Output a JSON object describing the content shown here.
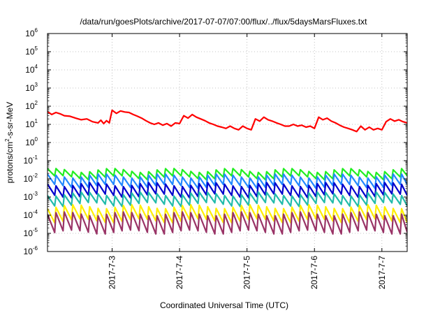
{
  "chart_data": {
    "type": "line",
    "title": "/data/run/goesPlots/archive/2017-07-07/07:00/flux/../flux/5daysMarsFluxes.txt",
    "xlabel": "Coordinated Universal Time (UTC)",
    "ylabel": "protons/cm2-s-sr-MeV",
    "ylabel_base": "protons/cm",
    "ylabel_sup": "2",
    "ylabel_rest": "-s-sr-MeV",
    "y_scale": "log",
    "ylim": [
      1e-06,
      1000000.0
    ],
    "xlim": [
      "2017-07-02 01:00",
      "2017-07-07 09:00"
    ],
    "grid": true,
    "legend": "none",
    "x_ticks": [
      {
        "value": "2017-07-03 00:00",
        "label": "2017-7-3"
      },
      {
        "value": "2017-07-04 00:00",
        "label": "2017-7-4"
      },
      {
        "value": "2017-07-05 00:00",
        "label": "2017-7-5"
      },
      {
        "value": "2017-07-06 00:00",
        "label": "2017-7-6"
      },
      {
        "value": "2017-07-07 00:00",
        "label": "2017-7-7"
      }
    ],
    "y_ticks": [
      {
        "value": 1e-06,
        "base": "10",
        "exp": "-6"
      },
      {
        "value": 1e-05,
        "base": "10",
        "exp": "-5"
      },
      {
        "value": 0.0001,
        "base": "10",
        "exp": "-4"
      },
      {
        "value": 0.001,
        "base": "10",
        "exp": "-3"
      },
      {
        "value": 0.01,
        "base": "10",
        "exp": "-2"
      },
      {
        "value": 0.1,
        "base": "10",
        "exp": "-1"
      },
      {
        "value": 1.0,
        "base": "10",
        "exp": "0"
      },
      {
        "value": 10.0,
        "base": "10",
        "exp": "1"
      },
      {
        "value": 100.0,
        "base": "10",
        "exp": "2"
      },
      {
        "value": 1000.0,
        "base": "10",
        "exp": "3"
      },
      {
        "value": 10000.0,
        "base": "10",
        "exp": "4"
      },
      {
        "value": 100000.0,
        "base": "10",
        "exp": "5"
      },
      {
        "value": 1000000.0,
        "base": "10",
        "exp": "6"
      }
    ],
    "series": [
      {
        "color": "#ff0000",
        "x": [
          "2017-07-02 01:00",
          "2017-07-02 02:30",
          "2017-07-02 04:00",
          "2017-07-02 05:30",
          "2017-07-02 07:00",
          "2017-07-02 09:00",
          "2017-07-02 11:00",
          "2017-07-02 13:00",
          "2017-07-02 15:00",
          "2017-07-02 17:00",
          "2017-07-02 19:00",
          "2017-07-02 20:00",
          "2017-07-02 21:00",
          "2017-07-02 22:00",
          "2017-07-02 23:00",
          "2017-07-03 00:00",
          "2017-07-03 01:30",
          "2017-07-03 03:00",
          "2017-07-03 04:30",
          "2017-07-03 06:00",
          "2017-07-03 07:30",
          "2017-07-03 09:00",
          "2017-07-03 10:30",
          "2017-07-03 12:00",
          "2017-07-03 13:30",
          "2017-07-03 15:00",
          "2017-07-03 16:30",
          "2017-07-03 18:00",
          "2017-07-03 19:30",
          "2017-07-03 21:00",
          "2017-07-03 22:30",
          "2017-07-04 00:00",
          "2017-07-04 01:30",
          "2017-07-04 03:00",
          "2017-07-04 04:30",
          "2017-07-04 06:00",
          "2017-07-04 07:30",
          "2017-07-04 09:00",
          "2017-07-04 10:30",
          "2017-07-04 12:00",
          "2017-07-04 13:30",
          "2017-07-04 15:00",
          "2017-07-04 16:30",
          "2017-07-04 18:00",
          "2017-07-04 19:30",
          "2017-07-04 21:00",
          "2017-07-04 22:30",
          "2017-07-05 00:00",
          "2017-07-05 01:30",
          "2017-07-05 03:00",
          "2017-07-05 04:30",
          "2017-07-05 06:00",
          "2017-07-05 07:30",
          "2017-07-05 09:00",
          "2017-07-05 10:30",
          "2017-07-05 12:00",
          "2017-07-05 13:30",
          "2017-07-05 15:00",
          "2017-07-05 16:30",
          "2017-07-05 18:00",
          "2017-07-05 19:30",
          "2017-07-05 21:00",
          "2017-07-05 22:30",
          "2017-07-06 00:00",
          "2017-07-06 01:30",
          "2017-07-06 03:00",
          "2017-07-06 04:30",
          "2017-07-06 06:00",
          "2017-07-06 07:30",
          "2017-07-06 09:00",
          "2017-07-06 10:30",
          "2017-07-06 12:00",
          "2017-07-06 13:30",
          "2017-07-06 15:00",
          "2017-07-06 16:30",
          "2017-07-06 18:00",
          "2017-07-06 19:30",
          "2017-07-06 21:00",
          "2017-07-06 22:30",
          "2017-07-07 00:00",
          "2017-07-07 01:30",
          "2017-07-07 03:00",
          "2017-07-07 04:30",
          "2017-07-07 06:00",
          "2017-07-07 07:30",
          "2017-07-07 09:00"
        ],
        "values": [
          50,
          35,
          45,
          38,
          30,
          28,
          22,
          18,
          20,
          14,
          12,
          17,
          11,
          16,
          12,
          60,
          40,
          55,
          48,
          45,
          35,
          28,
          22,
          16,
          12,
          10,
          12,
          9,
          11,
          8,
          12,
          11,
          30,
          22,
          35,
          25,
          20,
          16,
          12,
          10,
          8,
          7,
          6,
          8,
          6,
          5,
          8,
          6,
          5,
          20,
          15,
          25,
          18,
          15,
          12,
          10,
          8,
          8,
          10,
          8,
          9,
          7,
          8,
          6,
          25,
          18,
          22,
          15,
          12,
          9,
          7,
          6,
          5,
          4,
          8,
          5,
          7,
          5,
          6,
          5,
          14,
          20,
          15,
          18,
          14,
          12
        ]
      },
      {
        "color": "#22ee22",
        "base": 0.03,
        "dip": 0.012
      },
      {
        "color": "#2288ff",
        "base": 0.015,
        "dip": 0.004
      },
      {
        "color": "#0000cc",
        "base": 0.005,
        "dip": 0.0012
      },
      {
        "color": "#22bbaa",
        "base": 0.0015,
        "dip": 0.0004
      },
      {
        "color": "#ffee00",
        "base": 0.0003,
        "dip": 5e-05
      },
      {
        "color": "#993366",
        "base": 0.00012,
        "dip": 1.2e-05
      }
    ],
    "cycle_period_hours": 3
  }
}
